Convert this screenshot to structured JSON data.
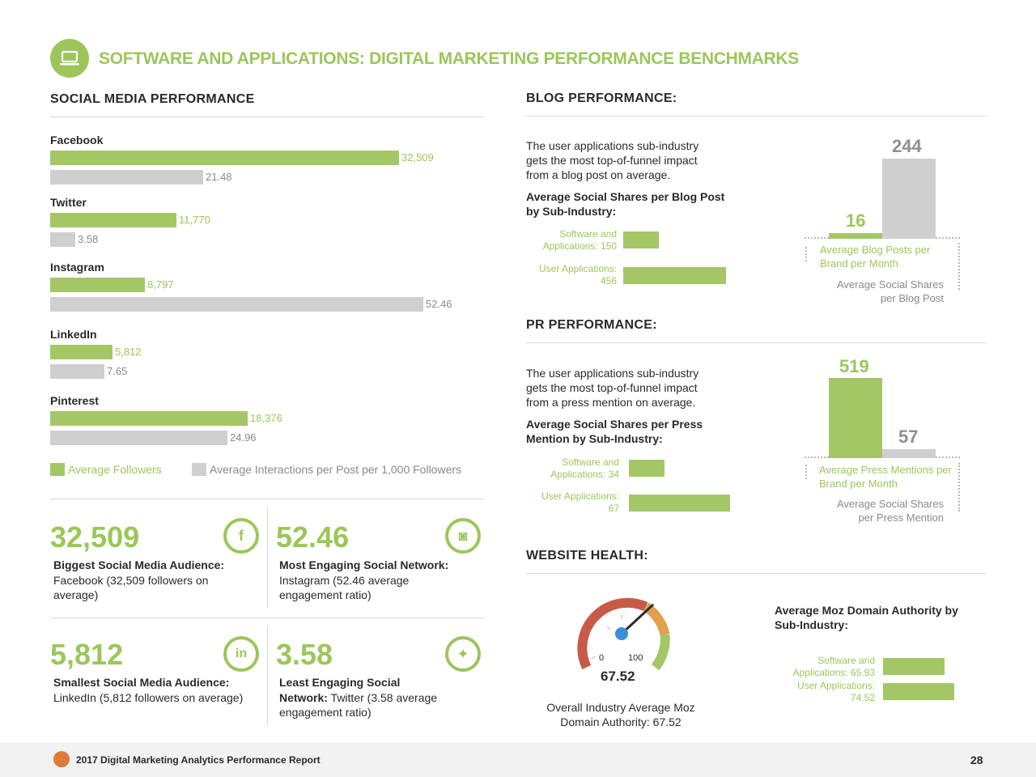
{
  "header": {
    "title": "SOFTWARE AND APPLICATIONS: DIGITAL MARKETING PERFORMANCE BENCHMARKS",
    "icon": "laptop-icon",
    "accent_color": "#9cc65a"
  },
  "social": {
    "title": "SOCIAL MEDIA PERFORMANCE",
    "legend": {
      "followers": "Average Followers",
      "interactions": "Average Interactions per Post per 1,000 Followers"
    },
    "platforms": [
      {
        "name": "Facebook",
        "followers": "32,509",
        "interactions": "21.48"
      },
      {
        "name": "Twitter",
        "followers": "11,770",
        "interactions": "3.58"
      },
      {
        "name": "Instagram",
        "followers": "8,797",
        "interactions": "52.46"
      },
      {
        "name": "LinkedIn",
        "followers": "5,812",
        "interactions": "7.65"
      },
      {
        "name": "Pinterest",
        "followers": "18,376",
        "interactions": "24.96"
      }
    ],
    "stats": [
      {
        "value": "32,509",
        "heading": "Biggest Social Media Audience:",
        "text": "Facebook (32,509 followers on average)",
        "icon": "facebook-icon",
        "glyph": "f"
      },
      {
        "value": "52.46",
        "heading": "Most Engaging Social Network:",
        "text": "Instagram (52.46 average engagement ratio)",
        "icon": "instagram-icon",
        "glyph": "◙"
      },
      {
        "value": "5,812",
        "heading": "Smallest Social Media Audience:",
        "text": "LinkedIn (5,812 followers on average)",
        "icon": "linkedin-icon",
        "glyph": "in"
      },
      {
        "value": "3.58",
        "heading_line1": "Least Engaging Social",
        "heading_line2": "Network:",
        "text": "Twitter (3.58 average engagement ratio)",
        "icon": "twitter-icon",
        "glyph": "✦"
      }
    ]
  },
  "blog": {
    "title": "BLOG PERFORMANCE:",
    "intro": "The user applications sub-industry gets the most top-of-funnel impact from a blog post on average.",
    "subheading": "Average Social Shares per Blog Post by Sub-Industry:",
    "cat1": "Software and Applications: 150",
    "cat2": "User Applications: 456",
    "val_green": "16",
    "val_gray": "244",
    "label_green": "Average Blog Posts per Brand per Month",
    "label_gray": "Average Social Shares per Blog Post"
  },
  "pr": {
    "title": "PR PERFORMANCE:",
    "intro": "The user applications sub-industry gets the most top-of-funnel impact from a press mention on average.",
    "subheading": "Average Social Shares per Press Mention by Sub-Industry:",
    "cat1": "Software and Applications: 34",
    "cat2": "User Applications: 67",
    "val_green": "519",
    "val_gray": "57",
    "label_green": "Average Press Mentions per Brand per Month",
    "label_gray": "Average Social Shares per Press Mention"
  },
  "website": {
    "title": "WEBSITE HEALTH:",
    "gauge_min": "0",
    "gauge_max": "100",
    "gauge_value": "67.52",
    "gauge_caption": "Overall Industry Average Moz Domain Authority: 67.52",
    "moz_heading": "Average Moz Domain Authority by Sub-Industry:",
    "cat1": "Software and Applications: 65.93",
    "cat2": "User Applications: 74.52"
  },
  "footer": {
    "report": "2017 Digital Marketing Analytics Performance Report",
    "page": "28"
  },
  "chart_data": [
    {
      "type": "bar",
      "orientation": "horizontal",
      "title": "SOCIAL MEDIA PERFORMANCE",
      "categories": [
        "Facebook",
        "Twitter",
        "Instagram",
        "LinkedIn",
        "Pinterest"
      ],
      "series": [
        {
          "name": "Average Followers",
          "values": [
            32509,
            11770,
            8797,
            5812,
            18376
          ]
        },
        {
          "name": "Average Interactions per Post per 1,000 Followers",
          "values": [
            21.48,
            3.58,
            52.46,
            7.65,
            24.96
          ]
        }
      ],
      "legend": "bottom"
    },
    {
      "type": "bar",
      "orientation": "horizontal",
      "title": "Average Social Shares per Blog Post by Sub-Industry:",
      "categories": [
        "Software and Applications",
        "User Applications"
      ],
      "values": [
        150,
        456
      ]
    },
    {
      "type": "bar",
      "title": "BLOG PERFORMANCE:",
      "categories": [
        "Average Blog Posts per Brand per Month",
        "Average Social Shares per Blog Post"
      ],
      "values": [
        16,
        244
      ]
    },
    {
      "type": "bar",
      "orientation": "horizontal",
      "title": "Average Social Shares per Press Mention by Sub-Industry:",
      "categories": [
        "Software and Applications",
        "User Applications"
      ],
      "values": [
        34,
        67
      ]
    },
    {
      "type": "bar",
      "title": "PR PERFORMANCE:",
      "categories": [
        "Average Press Mentions per Brand per Month",
        "Average Social Shares per Press Mention"
      ],
      "values": [
        519,
        57
      ]
    },
    {
      "type": "gauge",
      "title": "Overall Industry Average Moz Domain Authority",
      "min": 0,
      "max": 100,
      "value": 67.52
    },
    {
      "type": "bar",
      "orientation": "horizontal",
      "title": "Average Moz Domain Authority by Sub-Industry:",
      "categories": [
        "Software and Applications",
        "User Applications"
      ],
      "values": [
        65.93,
        74.52
      ]
    }
  ]
}
